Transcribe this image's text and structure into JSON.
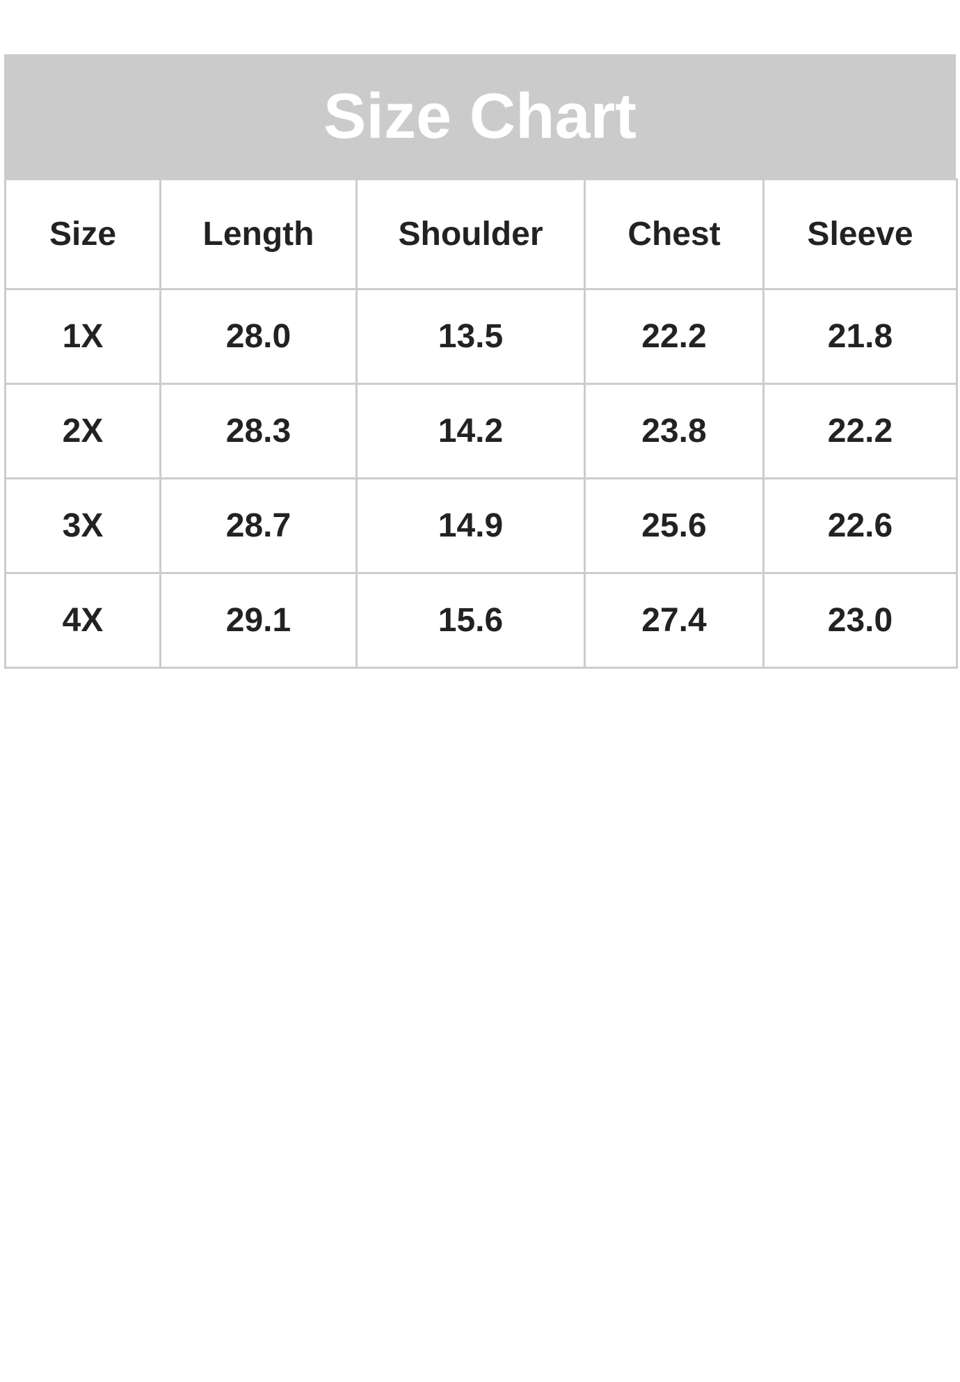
{
  "title": "Size Chart",
  "colors": {
    "header_band": "#cbcbcb",
    "grid": "#cccccc",
    "text": "#222222",
    "title_text": "#ffffff"
  },
  "columns": [
    "Size",
    "Length",
    "Shoulder",
    "Chest",
    "Sleeve"
  ],
  "rows": [
    [
      "1X",
      "28.0",
      "13.5",
      "22.2",
      "21.8"
    ],
    [
      "2X",
      "28.3",
      "14.2",
      "23.8",
      "22.2"
    ],
    [
      "3X",
      "28.7",
      "14.9",
      "25.6",
      "22.6"
    ],
    [
      "4X",
      "29.1",
      "15.6",
      "27.4",
      "23.0"
    ]
  ]
}
